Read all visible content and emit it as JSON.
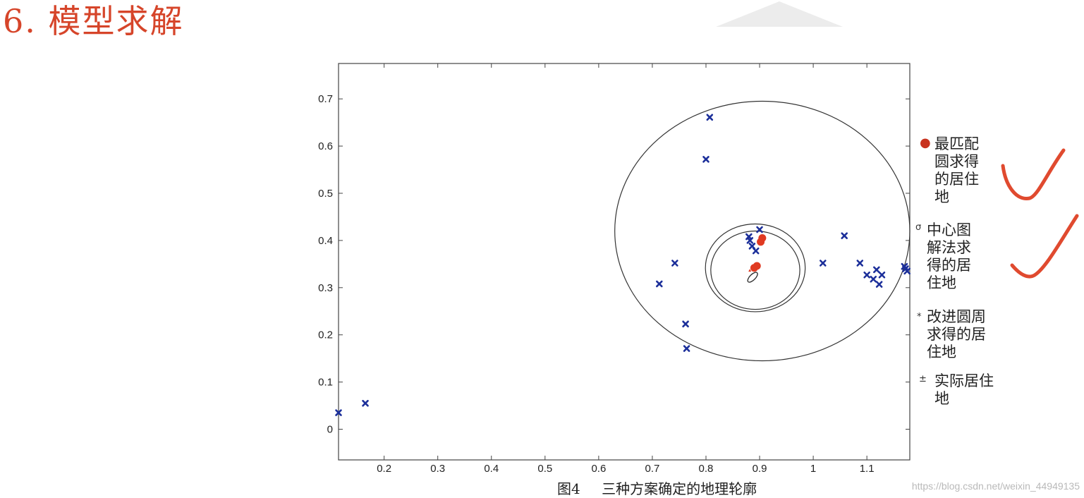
{
  "page": {
    "title": "6. 模型求解",
    "caption_number": "图4",
    "caption_text": "三种方案确定的地理轮廓",
    "watermark": "https://blog.csdn.net/weixin_44949135"
  },
  "legend": [
    {
      "symbol": "●",
      "label": "最匹配\n圆求得\n的居住\n地",
      "color": "#c8321e"
    },
    {
      "symbol": "σ",
      "label": "中心图\n解法求\n得的居\n住地",
      "color": "#333333"
    },
    {
      "symbol": "*",
      "label": "改进圆周\n求得的居\n住地",
      "color": "#333333"
    },
    {
      "symbol": "±",
      "label": "实际居住\n地",
      "color": "#333333"
    }
  ],
  "annotations": {
    "check_color": "#e04a2f",
    "check_count": 2
  },
  "chart_data": {
    "type": "scatter",
    "title": "",
    "xlabel": "",
    "ylabel": "",
    "xlim": [
      0.115,
      1.18
    ],
    "ylim": [
      -0.065,
      0.775
    ],
    "grid": false,
    "xticks": [
      "0.2",
      "0.3",
      "0.4",
      "0.5",
      "0.6",
      "0.7",
      "0.8",
      "0.9",
      "1",
      "1.1"
    ],
    "yticks": [
      "0",
      "0.1",
      "0.2",
      "0.3",
      "0.4",
      "0.5",
      "0.6",
      "0.7"
    ],
    "series": [
      {
        "marker": "x",
        "color": "#1c2f9a",
        "x": [
          0.115,
          0.165,
          0.713,
          0.742,
          0.762,
          0.764,
          0.8,
          0.807,
          0.88,
          0.882,
          0.886,
          0.893,
          0.9,
          1.018,
          1.058,
          1.087,
          1.1,
          1.112,
          1.118,
          1.123,
          1.128,
          1.17,
          1.172,
          1.175
        ],
        "y": [
          0.035,
          0.055,
          0.308,
          0.352,
          0.223,
          0.171,
          0.572,
          0.661,
          0.408,
          0.4,
          0.388,
          0.378,
          0.423,
          0.352,
          0.41,
          0.352,
          0.327,
          0.318,
          0.338,
          0.307,
          0.327,
          0.345,
          0.34,
          0.335
        ]
      },
      {
        "marker": "o",
        "color": "#e03a22",
        "x": [
          0.905,
          0.902,
          0.895,
          0.89
        ],
        "y": [
          0.405,
          0.397,
          0.346,
          0.342
        ]
      }
    ],
    "circles": [
      {
        "cx": 0.905,
        "cy": 0.42,
        "r": 0.275
      },
      {
        "cx": 0.892,
        "cy": 0.342,
        "r": 0.093
      },
      {
        "cx": 0.892,
        "cy": 0.337,
        "r": 0.083
      }
    ]
  }
}
